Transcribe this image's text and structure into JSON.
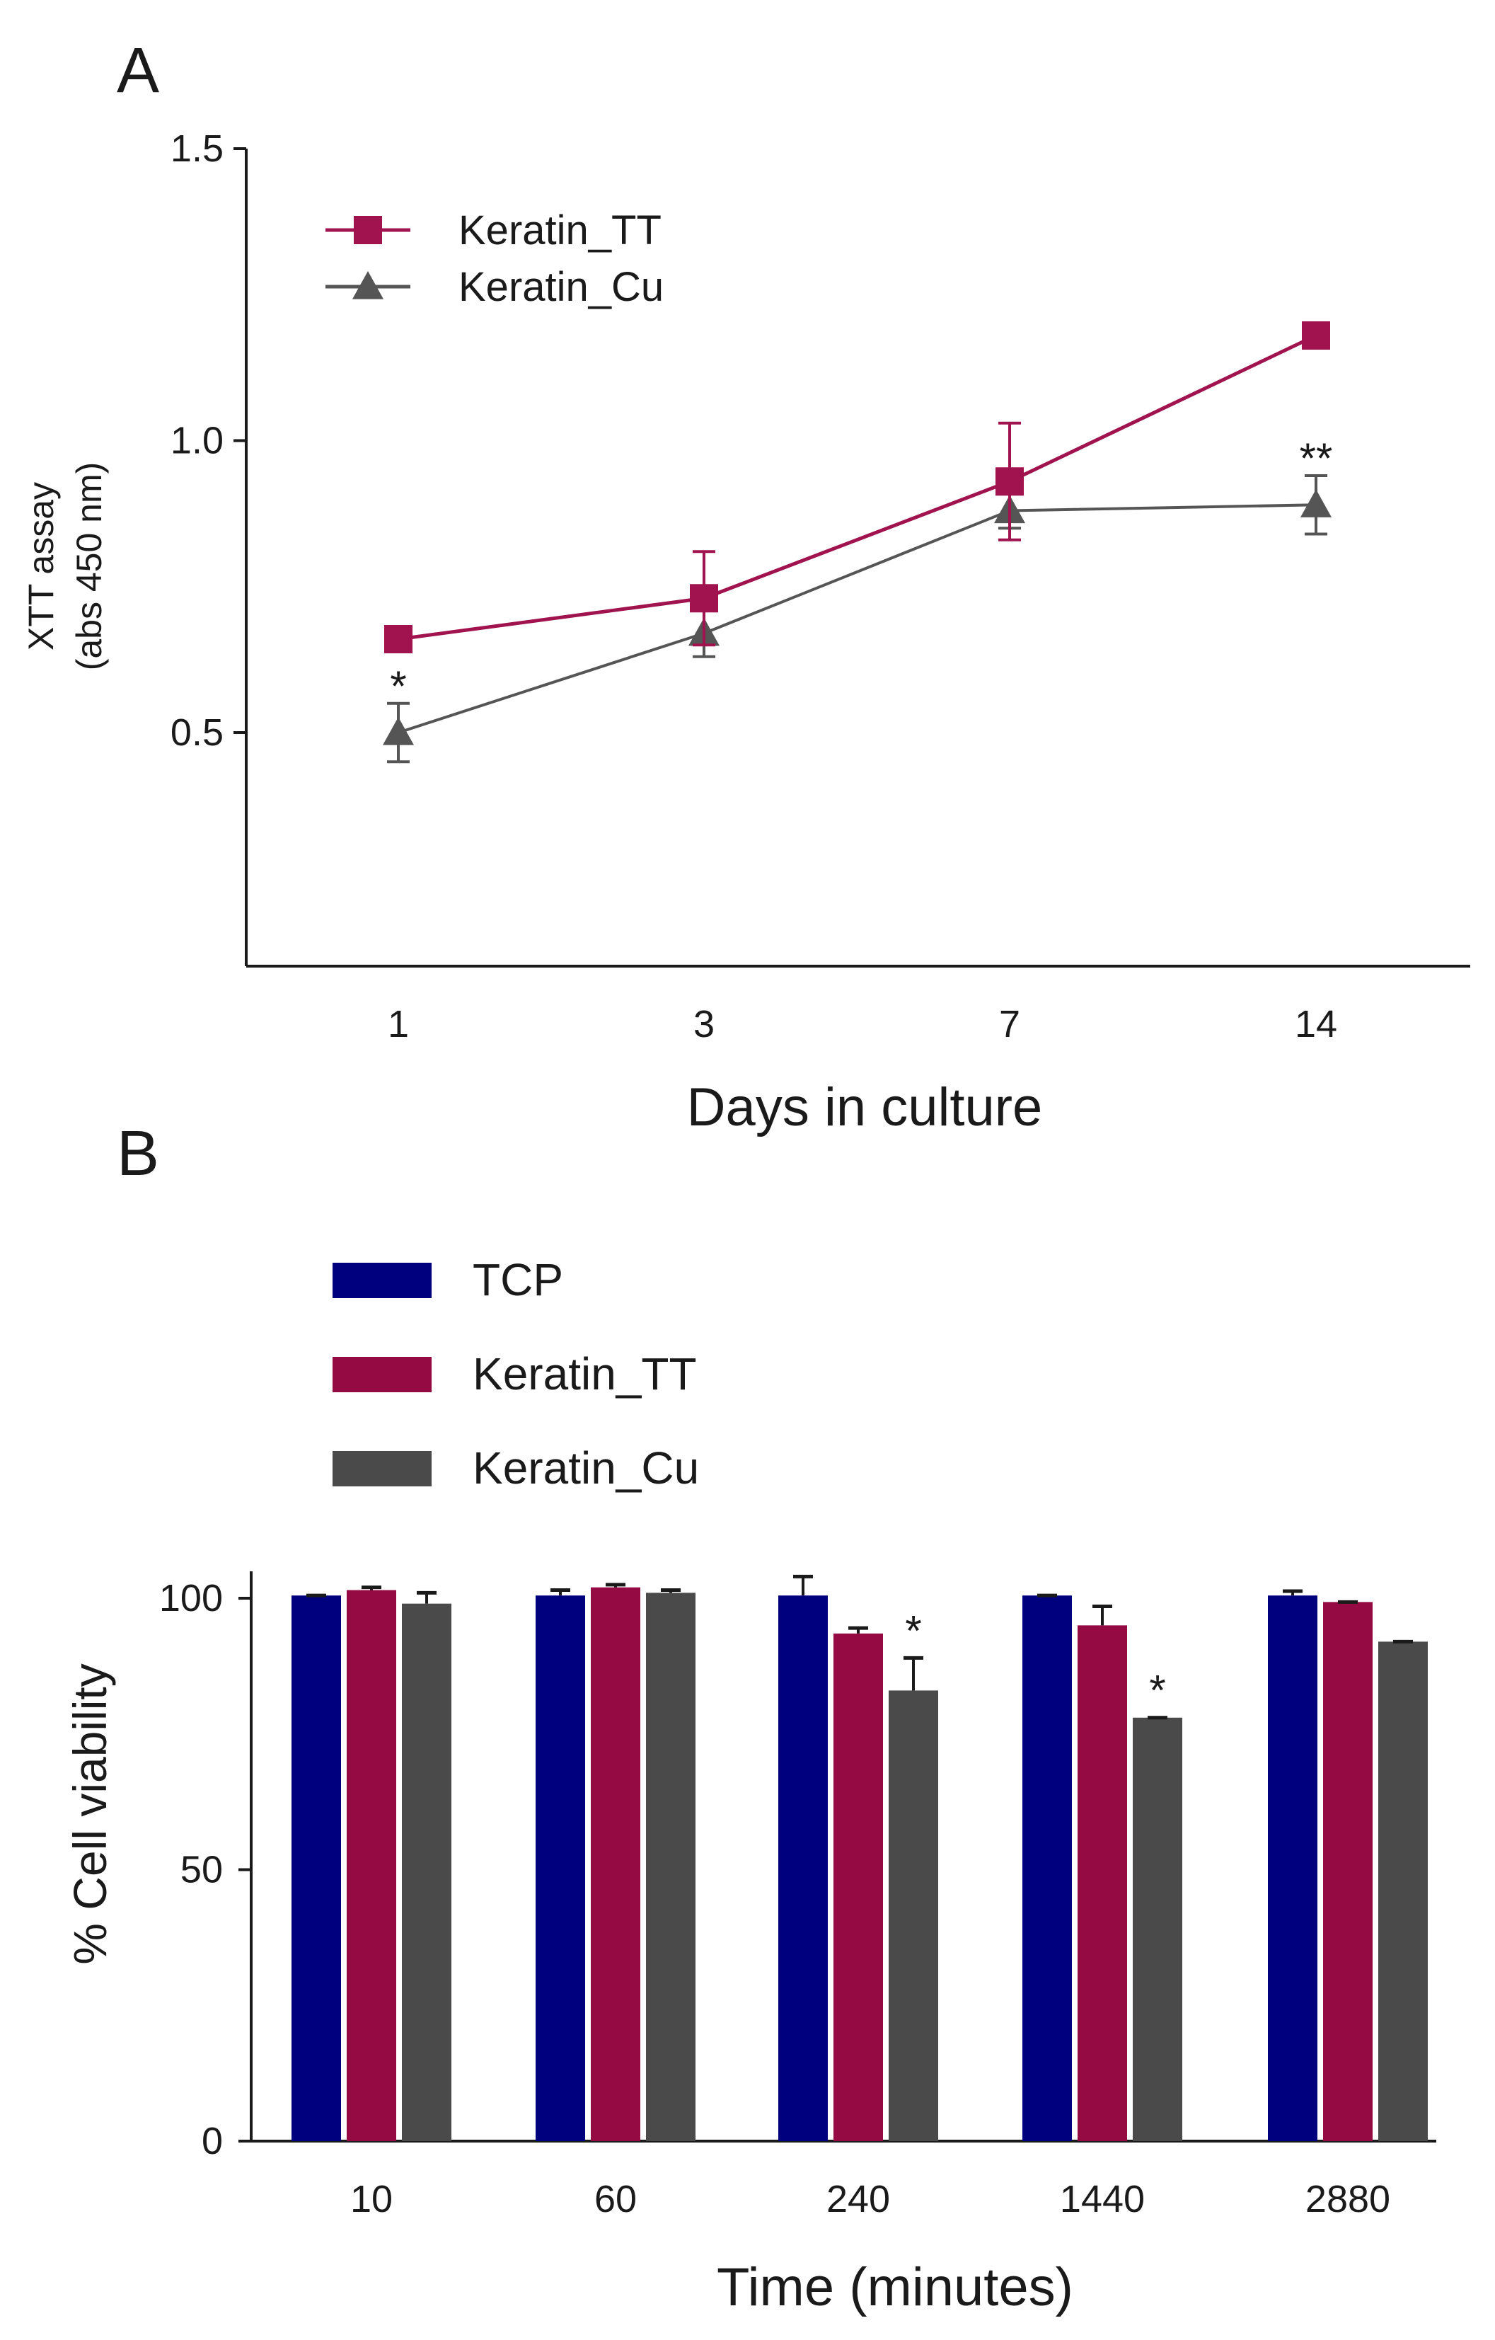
{
  "chart_data": [
    {
      "panel_label": "A",
      "type": "line",
      "xlabel": "Days in culture",
      "ylabel": "XTT assay",
      "ylabel_sub": "(abs 450 nm)",
      "categories": [
        "1",
        "3",
        "7",
        "14"
      ],
      "yticks": [
        "0.5",
        "1.0",
        "1.5"
      ],
      "ylim": [
        0.1,
        1.5
      ],
      "legend_position": "top-left",
      "series": [
        {
          "name": "Keratin_TT",
          "marker": "square",
          "color": "#a0134e",
          "values": [
            0.66,
            0.73,
            0.93,
            1.18
          ],
          "errors": [
            0.0,
            0.08,
            0.1,
            0.0
          ]
        },
        {
          "name": "Keratin_Cu",
          "marker": "triangle",
          "color": "#555555",
          "values": [
            0.5,
            0.67,
            0.88,
            0.89
          ],
          "errors": [
            0.05,
            0.04,
            0.03,
            0.05
          ]
        }
      ],
      "annotations": [
        {
          "category": "1",
          "text": "*"
        },
        {
          "category": "14",
          "text": "**"
        }
      ]
    },
    {
      "panel_label": "B",
      "type": "bar",
      "xlabel": "Time (minutes)",
      "ylabel": "% Cell viability",
      "categories": [
        "10",
        "60",
        "240",
        "1440",
        "2880"
      ],
      "yticks": [
        "0",
        "50",
        "100"
      ],
      "ylim": [
        0,
        105
      ],
      "legend_position": "top-left",
      "series": [
        {
          "name": "TCP",
          "color": "#00007f",
          "values": [
            100.5,
            100.5,
            100.5,
            100.5,
            100.5
          ],
          "errors": [
            0,
            1,
            3.5,
            0,
            0.8
          ]
        },
        {
          "name": "Keratin_TT",
          "color": "#960a44",
          "values": [
            101.5,
            102,
            93.5,
            95,
            99.3
          ],
          "errors": [
            0.5,
            0.5,
            1,
            3.5,
            0
          ]
        },
        {
          "name": "Keratin_Cu",
          "color": "#4a4a4a",
          "values": [
            99,
            101,
            83,
            78,
            92
          ],
          "errors": [
            2,
            0.5,
            6,
            0,
            0
          ]
        }
      ],
      "annotations": [
        {
          "category": "240",
          "text": "*"
        },
        {
          "category": "1440",
          "text": "*"
        }
      ]
    }
  ]
}
